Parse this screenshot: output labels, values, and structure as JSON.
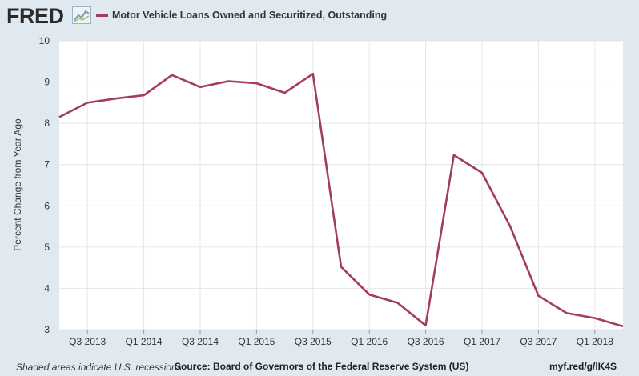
{
  "header": {
    "logo_text": "FRED",
    "logo_icon": "line-chart-icon"
  },
  "footer": {
    "note": "Shaded areas indicate U.S. recessions",
    "source": "Source: Board of Governors of the Federal Reserve System (US)",
    "link": "myf.red/g/lK4S"
  },
  "colors": {
    "background": "#e1e9f0",
    "plot_background": "#ffffff",
    "series": "#a33d5b",
    "grid": "#e6e6e6"
  },
  "chart_data": {
    "type": "line",
    "title": "",
    "xlabel": "",
    "ylabel": "Percent Change from Year Ago",
    "ylim": [
      3,
      10
    ],
    "yticks": [
      3,
      4,
      5,
      6,
      7,
      8,
      9,
      10
    ],
    "grid": true,
    "legend_position": "top-left",
    "x_tick_labels": [
      "Q3 2013",
      "Q1 2014",
      "Q3 2014",
      "Q1 2015",
      "Q3 2015",
      "Q1 2016",
      "Q3 2016",
      "Q1 2017",
      "Q3 2017",
      "Q1 2018"
    ],
    "x_tick_quarters": [
      "2013-Q3",
      "2014-Q1",
      "2014-Q3",
      "2015-Q1",
      "2015-Q3",
      "2016-Q1",
      "2016-Q3",
      "2017-Q1",
      "2017-Q3",
      "2018-Q1"
    ],
    "x_range": [
      "2013-Q2",
      "2018-Q2"
    ],
    "series": [
      {
        "name": "Motor Vehicle Loans Owned and Securitized, Outstanding",
        "x": [
          "2013-Q2",
          "2013-Q3",
          "2013-Q4",
          "2014-Q1",
          "2014-Q2",
          "2014-Q3",
          "2014-Q4",
          "2015-Q1",
          "2015-Q2",
          "2015-Q3",
          "2015-Q4",
          "2016-Q1",
          "2016-Q2",
          "2016-Q3",
          "2016-Q4",
          "2017-Q1",
          "2017-Q2",
          "2017-Q3",
          "2017-Q4",
          "2018-Q1",
          "2018-Q2"
        ],
        "values": [
          8.15,
          8.5,
          8.6,
          8.68,
          9.17,
          8.88,
          9.02,
          8.97,
          8.74,
          9.2,
          4.52,
          3.85,
          3.65,
          3.1,
          7.23,
          6.8,
          5.5,
          3.82,
          3.4,
          3.28,
          3.08
        ]
      }
    ]
  }
}
